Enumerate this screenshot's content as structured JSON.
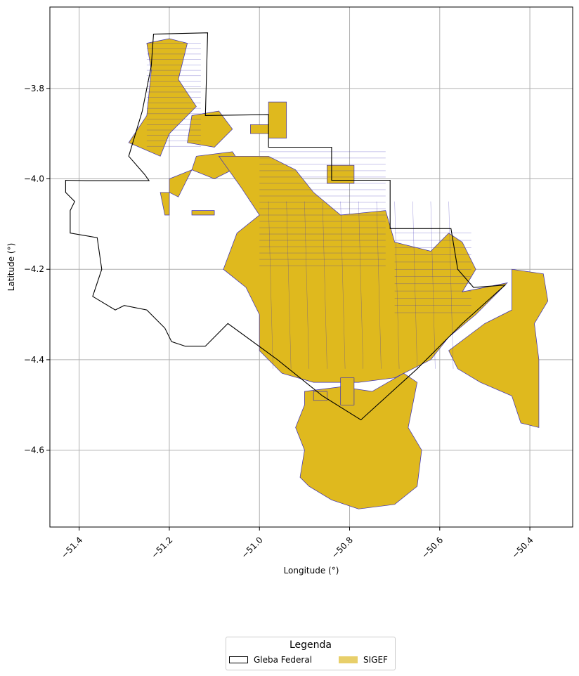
{
  "chart_data": {
    "type": "map",
    "xlabel": "Longitude (°)",
    "ylabel": "Latitude (°)",
    "xlim": [
      -51.465,
      -50.305
    ],
    "ylim": [
      -4.77,
      -3.62
    ],
    "x_ticks": [
      -51.4,
      -51.2,
      -51.0,
      -50.8,
      -50.6,
      -50.4
    ],
    "x_tick_labels": [
      "−51.4",
      "−51.2",
      "−51.0",
      "−50.8",
      "−50.6",
      "−50.4"
    ],
    "y_ticks": [
      -3.8,
      -4.0,
      -4.2,
      -4.4,
      -4.6
    ],
    "y_tick_labels": [
      "−3.8",
      "−4.0",
      "−4.2",
      "−4.4",
      "−4.6"
    ],
    "grid": true,
    "x_tick_rotation_deg": 45,
    "legend": {
      "title": "Legenda",
      "placement": "below-center",
      "entries": [
        {
          "label": "Gleba Federal",
          "style": "outline"
        },
        {
          "label": "SIGEF",
          "style": "fill"
        }
      ]
    },
    "colors": {
      "sigef_fill": "#dfb91e",
      "sigef_edge": "#3b2fb8",
      "gleba_edge": "#000000",
      "grid": "#b0b0b0",
      "legend_sigef_swatch": "#e8cf6a"
    },
    "layers": {
      "gleba_federal": [
        [
          [
            -51.43,
            -4.003
          ],
          [
            -51.385,
            -4.004
          ],
          [
            -51.245,
            -4.004
          ],
          [
            -51.255,
            -3.99
          ],
          [
            -51.29,
            -3.95
          ],
          [
            -51.26,
            -3.85
          ],
          [
            -51.24,
            -3.75
          ],
          [
            -51.235,
            -3.68
          ],
          [
            -51.115,
            -3.677
          ],
          [
            -51.12,
            -3.86
          ],
          [
            -50.98,
            -3.858
          ],
          [
            -50.98,
            -3.93
          ],
          [
            -50.84,
            -3.93
          ],
          [
            -50.84,
            -4.003
          ],
          [
            -50.71,
            -4.003
          ],
          [
            -50.71,
            -4.11
          ],
          [
            -50.575,
            -4.11
          ],
          [
            -50.57,
            -4.14
          ],
          [
            -50.56,
            -4.2
          ],
          [
            -50.525,
            -4.24
          ],
          [
            -50.455,
            -4.235
          ],
          [
            -50.55,
            -4.32
          ],
          [
            -50.65,
            -4.42
          ],
          [
            -50.775,
            -4.533
          ],
          [
            -50.86,
            -4.48
          ],
          [
            -50.96,
            -4.4
          ],
          [
            -51.07,
            -4.32
          ],
          [
            -51.12,
            -4.37
          ],
          [
            -51.165,
            -4.37
          ],
          [
            -51.195,
            -4.36
          ],
          [
            -51.21,
            -4.33
          ],
          [
            -51.25,
            -4.29
          ],
          [
            -51.3,
            -4.28
          ],
          [
            -51.32,
            -4.29
          ],
          [
            -51.37,
            -4.26
          ],
          [
            -51.35,
            -4.2
          ],
          [
            -51.36,
            -4.13
          ],
          [
            -51.42,
            -4.12
          ],
          [
            -51.42,
            -4.07
          ],
          [
            -51.41,
            -4.05
          ],
          [
            -51.43,
            -4.03
          ]
        ]
      ],
      "sigef": [
        [
          [
            -51.25,
            -3.7
          ],
          [
            -51.2,
            -3.69
          ],
          [
            -51.16,
            -3.7
          ],
          [
            -51.18,
            -3.78
          ],
          [
            -51.14,
            -3.84
          ],
          [
            -51.2,
            -3.9
          ],
          [
            -51.22,
            -3.95
          ],
          [
            -51.29,
            -3.92
          ],
          [
            -51.25,
            -3.86
          ],
          [
            -51.24,
            -3.76
          ]
        ],
        [
          [
            -51.15,
            -3.86
          ],
          [
            -51.09,
            -3.85
          ],
          [
            -51.06,
            -3.89
          ],
          [
            -51.1,
            -3.93
          ],
          [
            -51.16,
            -3.92
          ]
        ],
        [
          [
            -51.02,
            -3.88
          ],
          [
            -50.98,
            -3.88
          ],
          [
            -50.98,
            -3.9
          ],
          [
            -51.02,
            -3.9
          ]
        ],
        [
          [
            -50.98,
            -3.83
          ],
          [
            -50.94,
            -3.83
          ],
          [
            -50.94,
            -3.91
          ],
          [
            -50.98,
            -3.91
          ]
        ],
        [
          [
            -51.14,
            -3.95
          ],
          [
            -51.06,
            -3.94
          ],
          [
            -51.04,
            -3.97
          ],
          [
            -51.1,
            -4.0
          ],
          [
            -51.15,
            -3.98
          ]
        ],
        [
          [
            -51.2,
            -4.0
          ],
          [
            -51.15,
            -3.98
          ],
          [
            -51.18,
            -4.04
          ],
          [
            -51.2,
            -4.03
          ]
        ],
        [
          [
            -51.22,
            -4.03
          ],
          [
            -51.2,
            -4.03
          ],
          [
            -51.2,
            -4.08
          ],
          [
            -51.21,
            -4.08
          ]
        ],
        [
          [
            -51.15,
            -4.07
          ],
          [
            -51.1,
            -4.07
          ],
          [
            -51.1,
            -4.08
          ],
          [
            -51.15,
            -4.08
          ]
        ],
        [
          [
            -51.09,
            -3.95
          ],
          [
            -50.98,
            -3.95
          ],
          [
            -50.92,
            -3.98
          ],
          [
            -50.88,
            -4.03
          ],
          [
            -50.82,
            -4.08
          ],
          [
            -50.72,
            -4.07
          ],
          [
            -50.7,
            -4.14
          ],
          [
            -50.62,
            -4.16
          ],
          [
            -50.58,
            -4.12
          ],
          [
            -50.55,
            -4.14
          ],
          [
            -50.52,
            -4.2
          ],
          [
            -50.55,
            -4.25
          ],
          [
            -50.5,
            -4.24
          ],
          [
            -50.45,
            -4.23
          ],
          [
            -50.52,
            -4.3
          ],
          [
            -50.58,
            -4.35
          ],
          [
            -50.62,
            -4.4
          ],
          [
            -50.7,
            -4.44
          ],
          [
            -50.78,
            -4.45
          ],
          [
            -50.88,
            -4.45
          ],
          [
            -50.95,
            -4.43
          ],
          [
            -51.0,
            -4.38
          ],
          [
            -51.0,
            -4.3
          ],
          [
            -51.03,
            -4.24
          ],
          [
            -51.08,
            -4.2
          ],
          [
            -51.05,
            -4.12
          ],
          [
            -51.0,
            -4.08
          ],
          [
            -51.04,
            -4.02
          ]
        ],
        [
          [
            -50.9,
            -4.47
          ],
          [
            -50.82,
            -4.46
          ],
          [
            -50.75,
            -4.47
          ],
          [
            -50.68,
            -4.43
          ],
          [
            -50.65,
            -4.45
          ],
          [
            -50.67,
            -4.55
          ],
          [
            -50.64,
            -4.6
          ],
          [
            -50.65,
            -4.68
          ],
          [
            -50.7,
            -4.72
          ],
          [
            -50.78,
            -4.73
          ],
          [
            -50.84,
            -4.71
          ],
          [
            -50.89,
            -4.68
          ],
          [
            -50.91,
            -4.66
          ],
          [
            -50.9,
            -4.6
          ],
          [
            -50.92,
            -4.55
          ],
          [
            -50.9,
            -4.5
          ]
        ],
        [
          [
            -50.44,
            -4.2
          ],
          [
            -50.37,
            -4.21
          ],
          [
            -50.36,
            -4.27
          ],
          [
            -50.39,
            -4.32
          ],
          [
            -50.38,
            -4.4
          ],
          [
            -50.38,
            -4.55
          ],
          [
            -50.42,
            -4.54
          ],
          [
            -50.44,
            -4.48
          ],
          [
            -50.51,
            -4.45
          ],
          [
            -50.56,
            -4.42
          ],
          [
            -50.58,
            -4.38
          ],
          [
            -50.5,
            -4.32
          ],
          [
            -50.44,
            -4.29
          ]
        ],
        [
          [
            -50.85,
            -3.97
          ],
          [
            -50.79,
            -3.97
          ],
          [
            -50.79,
            -4.01
          ],
          [
            -50.85,
            -4.01
          ]
        ],
        [
          [
            -50.88,
            -4.47
          ],
          [
            -50.85,
            -4.47
          ],
          [
            -50.85,
            -4.49
          ],
          [
            -50.88,
            -4.49
          ]
        ],
        [
          [
            -50.82,
            -4.44
          ],
          [
            -50.79,
            -4.44
          ],
          [
            -50.79,
            -4.5
          ],
          [
            -50.82,
            -4.5
          ]
        ]
      ]
    }
  }
}
